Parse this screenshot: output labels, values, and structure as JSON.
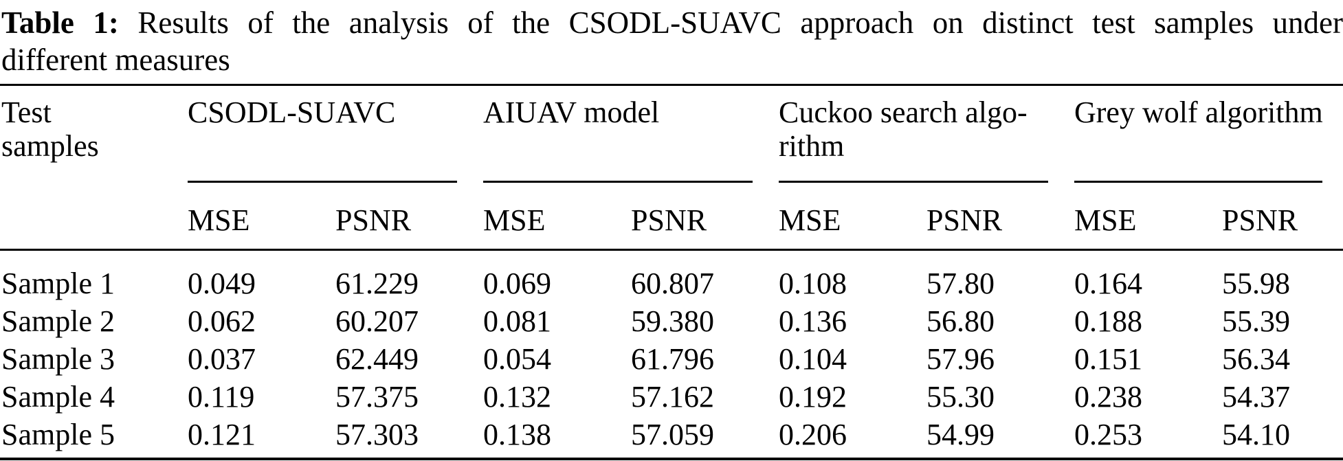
{
  "caption": {
    "label": "Table 1:",
    "line1": "Results of the analysis of the CSODL-SUAVC approach on distinct test samples under",
    "line2": "different measures"
  },
  "table": {
    "row_header": "Test samples",
    "groups": [
      {
        "label": "CSODL-SUAVC"
      },
      {
        "label": "AIUAV model"
      },
      {
        "label": "Cuckoo search algo­rithm"
      },
      {
        "label": "Grey wolf algorithm"
      }
    ],
    "measures": [
      "MSE",
      "PSNR"
    ],
    "rows": [
      {
        "sample": "Sample 1",
        "values": [
          "0.049",
          "61.229",
          "0.069",
          "60.807",
          "0.108",
          "57.80",
          "0.164",
          "55.98"
        ]
      },
      {
        "sample": "Sample 2",
        "values": [
          "0.062",
          "60.207",
          "0.081",
          "59.380",
          "0.136",
          "56.80",
          "0.188",
          "55.39"
        ]
      },
      {
        "sample": "Sample 3",
        "values": [
          "0.037",
          "62.449",
          "0.054",
          "61.796",
          "0.104",
          "57.96",
          "0.151",
          "56.34"
        ]
      },
      {
        "sample": "Sample 4",
        "values": [
          "0.119",
          "57.375",
          "0.132",
          "57.162",
          "0.192",
          "55.30",
          "0.238",
          "54.37"
        ]
      },
      {
        "sample": "Sample 5",
        "values": [
          "0.121",
          "57.303",
          "0.138",
          "57.059",
          "0.206",
          "54.99",
          "0.253",
          "54.10"
        ]
      }
    ]
  },
  "chart_data": {
    "type": "table",
    "title": "Table 1: Results of the analysis of the CSODL-SUAVC approach on distinct test samples under different measures",
    "row_header": "Test samples",
    "categories": [
      "Sample 1",
      "Sample 2",
      "Sample 3",
      "Sample 4",
      "Sample 5"
    ],
    "column_groups": [
      "CSODL-SUAVC",
      "AIUAV model",
      "Cuckoo search algorithm",
      "Grey wolf algorithm"
    ],
    "measures_per_group": [
      "MSE",
      "PSNR"
    ],
    "series": [
      {
        "name": "CSODL-SUAVC MSE",
        "values": [
          0.049,
          0.062,
          0.037,
          0.119,
          0.121
        ]
      },
      {
        "name": "CSODL-SUAVC PSNR",
        "values": [
          61.229,
          60.207,
          62.449,
          57.375,
          57.303
        ]
      },
      {
        "name": "AIUAV model MSE",
        "values": [
          0.069,
          0.081,
          0.054,
          0.132,
          0.138
        ]
      },
      {
        "name": "AIUAV model PSNR",
        "values": [
          60.807,
          59.38,
          61.796,
          57.162,
          57.059
        ]
      },
      {
        "name": "Cuckoo search algorithm MSE",
        "values": [
          0.108,
          0.136,
          0.104,
          0.192,
          0.206
        ]
      },
      {
        "name": "Cuckoo search algorithm PSNR",
        "values": [
          57.8,
          56.8,
          57.96,
          55.3,
          54.99
        ]
      },
      {
        "name": "Grey wolf algorithm MSE",
        "values": [
          0.164,
          0.188,
          0.151,
          0.238,
          0.253
        ]
      },
      {
        "name": "Grey wolf algorithm PSNR",
        "values": [
          55.98,
          55.39,
          56.34,
          54.37,
          54.1
        ]
      }
    ]
  }
}
